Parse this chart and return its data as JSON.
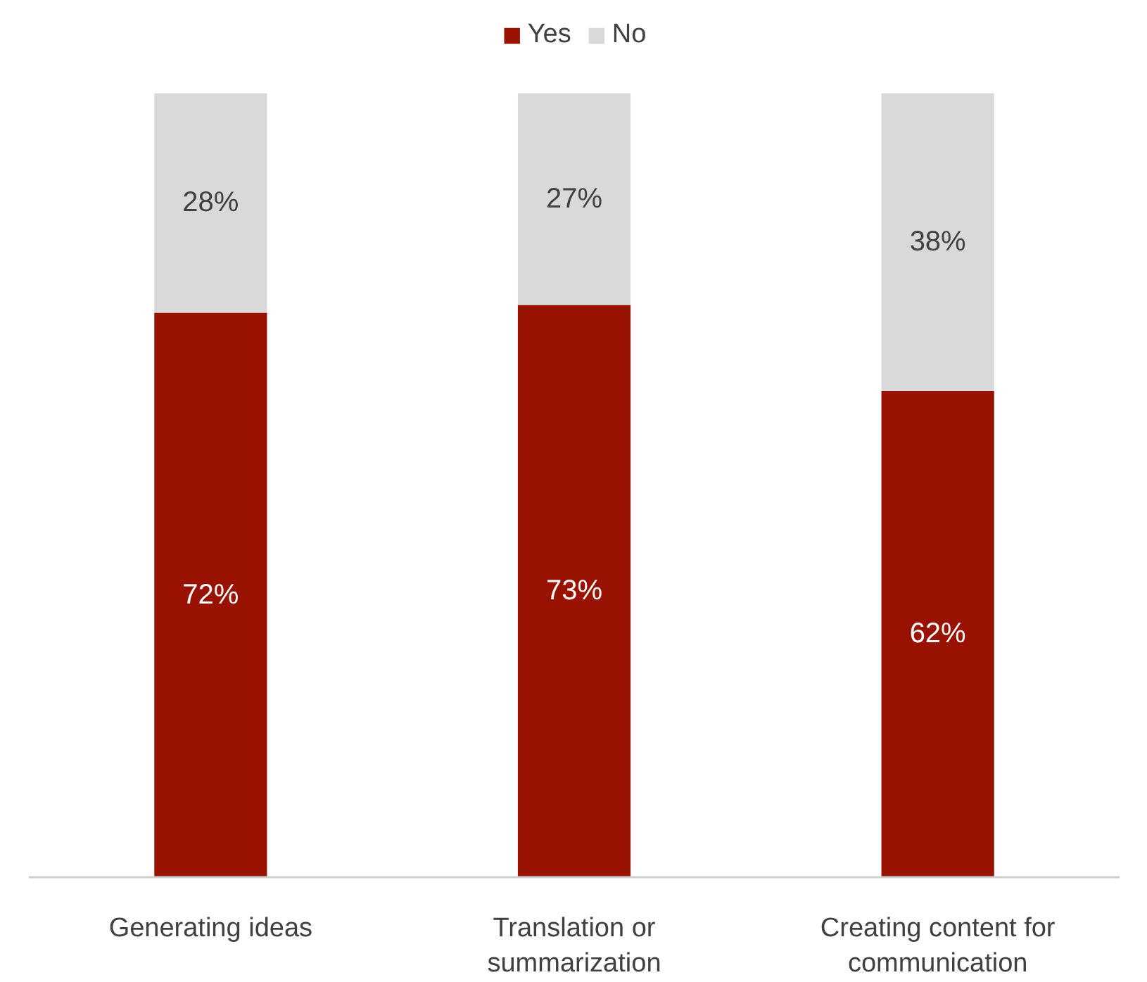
{
  "chart_data": {
    "type": "bar",
    "stacked": true,
    "categories": [
      "Generating ideas",
      "Translation or summarization",
      "Creating content for communication"
    ],
    "series": [
      {
        "name": "Yes",
        "color": "#991100",
        "values": [
          72,
          73,
          62
        ],
        "value_labels": [
          "72%",
          "73%",
          "62%"
        ]
      },
      {
        "name": "No",
        "color": "#d9d9d9",
        "values": [
          28,
          27,
          38
        ],
        "value_labels": [
          "28%",
          "27%",
          "38%"
        ]
      }
    ],
    "legend": "top",
    "grid": false,
    "tick_labels": "x"
  }
}
